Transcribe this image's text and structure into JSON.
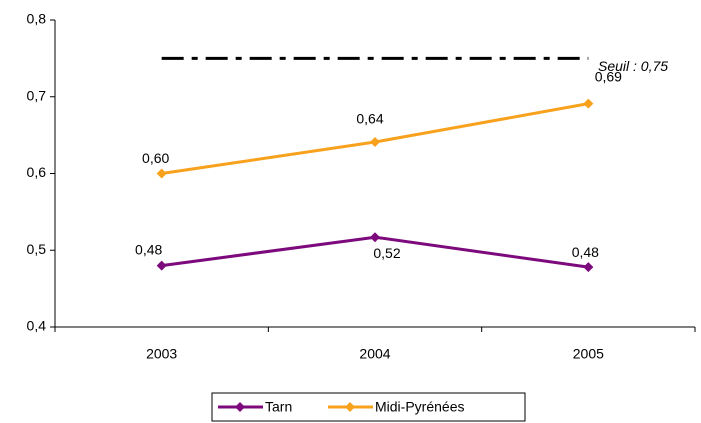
{
  "chart_data": {
    "type": "line",
    "categories": [
      "2003",
      "2004",
      "2005"
    ],
    "series": [
      {
        "name": "Tarn",
        "color": "#7d0a7d",
        "values": [
          0.48,
          0.517,
          0.478
        ],
        "value_labels": [
          "0,48",
          "0,52",
          "0,48"
        ]
      },
      {
        "name": "Midi-Pyrénées",
        "color": "#f8a11d",
        "values": [
          0.6,
          0.641,
          0.691
        ],
        "value_labels": [
          "0,60",
          "0,64",
          "0,69"
        ]
      }
    ],
    "threshold": {
      "value": 0.75,
      "label": "Seuil : 0,75"
    },
    "ylim": [
      0.4,
      0.8
    ],
    "yticks": [
      {
        "value": 0.4,
        "label": "0,4"
      },
      {
        "value": 0.5,
        "label": "0,5"
      },
      {
        "value": 0.6,
        "label": "0,6"
      },
      {
        "value": 0.7,
        "label": "0,7"
      },
      {
        "value": 0.8,
        "label": "0,8"
      }
    ],
    "legend": "bottom"
  }
}
